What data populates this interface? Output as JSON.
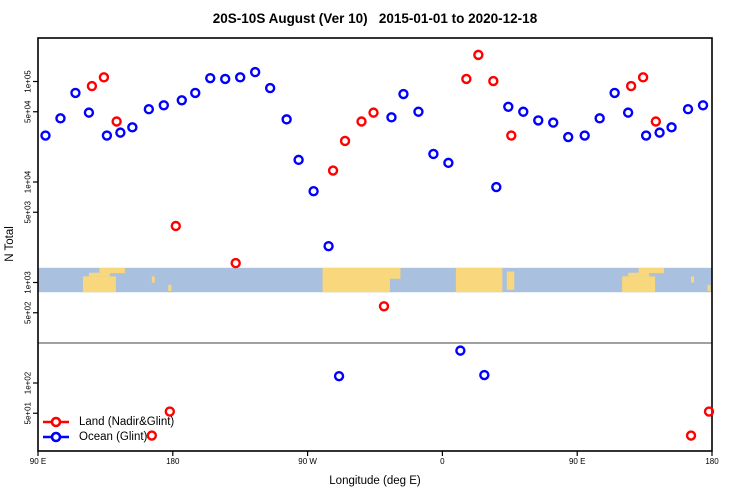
{
  "title": "20S-10S August (Ver 10)   2015-01-01 to 2020-12-18",
  "axes": {
    "x_label": "Longitude (deg E)",
    "y_label": "N Total",
    "x_ticks": [
      {
        "deg": 90,
        "label": "90 E"
      },
      {
        "deg": 180,
        "label": "180"
      },
      {
        "deg": 270,
        "label": "90 W"
      },
      {
        "deg": 360,
        "label": "0"
      },
      {
        "deg": 450,
        "label": "90 E"
      },
      {
        "deg": 540,
        "label": "180"
      }
    ],
    "y_ticks": [
      {
        "value": 100000,
        "label": "1e+05"
      },
      {
        "value": 50000,
        "label": "5e+04"
      },
      {
        "value": 10000,
        "label": "1e+04"
      },
      {
        "value": 5000,
        "label": "5e+03"
      },
      {
        "value": 1000,
        "label": "1e+03"
      },
      {
        "value": 500,
        "label": "5e+02"
      },
      {
        "value": 100,
        "label": "1e+02"
      },
      {
        "value": 50,
        "label": "5e+01"
      }
    ]
  },
  "chart_data": {
    "type": "scatter",
    "title": "20S-10S August (Ver 10)   2015-01-01 to 2020-12-18",
    "xlabel": "Longitude (deg E)",
    "ylabel": "N Total",
    "x_axis": {
      "span_deg": [
        90,
        540
      ],
      "wraps_longitude": true,
      "tick_labels": [
        "90 E",
        "180",
        "90 W",
        "0",
        "90 E",
        "180"
      ]
    },
    "y_axis": {
      "scale": "log",
      "range": [
        25,
        220000
      ]
    },
    "series": [
      {
        "name": "Land (Nadir&Glint)",
        "color": "#FF0000",
        "points": [
          [
            126,
            90000
          ],
          [
            134,
            110000
          ],
          [
            142.5,
            40000
          ],
          [
            166,
            30
          ],
          [
            178,
            52
          ],
          [
            -178,
            3650
          ],
          [
            -138,
            1560
          ],
          [
            -73,
            13000
          ],
          [
            -65,
            25600
          ],
          [
            -54,
            40000
          ],
          [
            -46,
            49000
          ],
          [
            -39,
            580
          ],
          [
            16,
            106000
          ],
          [
            24,
            184000
          ],
          [
            34,
            101000
          ],
          [
            46,
            29000
          ]
        ]
      },
      {
        "name": "Ocean (Glint)",
        "color": "#0000FF",
        "points": [
          [
            95,
            29000
          ],
          [
            105,
            43000
          ],
          [
            115,
            77000
          ],
          [
            124,
            49000
          ],
          [
            136,
            29000
          ],
          [
            145,
            31000
          ],
          [
            153,
            35000
          ],
          [
            164,
            53000
          ],
          [
            174,
            58000
          ],
          [
            -174,
            65000
          ],
          [
            -165,
            77000
          ],
          [
            -155,
            108000
          ],
          [
            -145,
            106000
          ],
          [
            -135,
            110000
          ],
          [
            -125,
            124000
          ],
          [
            -115,
            86000
          ],
          [
            -104,
            42000
          ],
          [
            -96,
            16600
          ],
          [
            -86,
            8100
          ],
          [
            -76,
            2300
          ],
          [
            -69,
            117
          ],
          [
            -34,
            44000
          ],
          [
            -26,
            75000
          ],
          [
            -16,
            50000
          ],
          [
            -6,
            19000
          ],
          [
            4,
            15500
          ],
          [
            12,
            210
          ],
          [
            28,
            120
          ],
          [
            36,
            8900
          ],
          [
            44,
            56000
          ],
          [
            54,
            50000
          ],
          [
            64,
            41000
          ],
          [
            74,
            39000
          ],
          [
            84,
            28000
          ]
        ]
      }
    ],
    "reference_line": {
      "value": 250,
      "color": "#808080"
    },
    "map_strip": {
      "ocean_color": "#A9C0DE",
      "land_color": "#F9D77C",
      "value_top": 1400,
      "value_bottom": 800,
      "land_patches": [
        {
          "name": "australia",
          "from": 120,
          "to": 142,
          "y0": 0.35,
          "y1": 1.0
        },
        {
          "name": "australia-north",
          "from": 124,
          "to": 138,
          "y0": 0.2,
          "y1": 0.35
        },
        {
          "name": "new-guinea",
          "from": 131,
          "to": 148,
          "y0": 0.0,
          "y1": 0.22
        },
        {
          "name": "vanuatu",
          "from": 166,
          "to": 168,
          "y0": 0.35,
          "y1": 0.6
        },
        {
          "name": "fiji",
          "from": 177,
          "to": 179,
          "y0": 0.7,
          "y1": 0.95
        },
        {
          "name": "south-america",
          "from": 280,
          "to": 325,
          "y0": 0.0,
          "y1": 1.0
        },
        {
          "name": "brazil-east",
          "from": 325,
          "to": 332,
          "y0": 0.0,
          "y1": 0.45
        },
        {
          "name": "africa",
          "from": 369,
          "to": 400,
          "y0": 0.0,
          "y1": 1.0
        },
        {
          "name": "madagascar",
          "from": 403,
          "to": 408,
          "y0": 0.15,
          "y1": 0.9
        },
        {
          "name": "australia-2",
          "from": 480,
          "to": 502,
          "y0": 0.35,
          "y1": 1.0
        },
        {
          "name": "australia-north-2",
          "from": 484,
          "to": 498,
          "y0": 0.2,
          "y1": 0.35
        },
        {
          "name": "new-guinea-2",
          "from": 491,
          "to": 508,
          "y0": 0.0,
          "y1": 0.22
        },
        {
          "name": "vanuatu-2",
          "from": 526,
          "to": 528,
          "y0": 0.35,
          "y1": 0.6
        },
        {
          "name": "fiji-2",
          "from": 537,
          "to": 539,
          "y0": 0.7,
          "y1": 0.95
        }
      ]
    }
  },
  "legend": {
    "items": [
      {
        "label": "Land (Nadir&Glint)",
        "color": "#FF0000"
      },
      {
        "label": "Ocean (Glint)",
        "color": "#0000FF"
      }
    ]
  }
}
